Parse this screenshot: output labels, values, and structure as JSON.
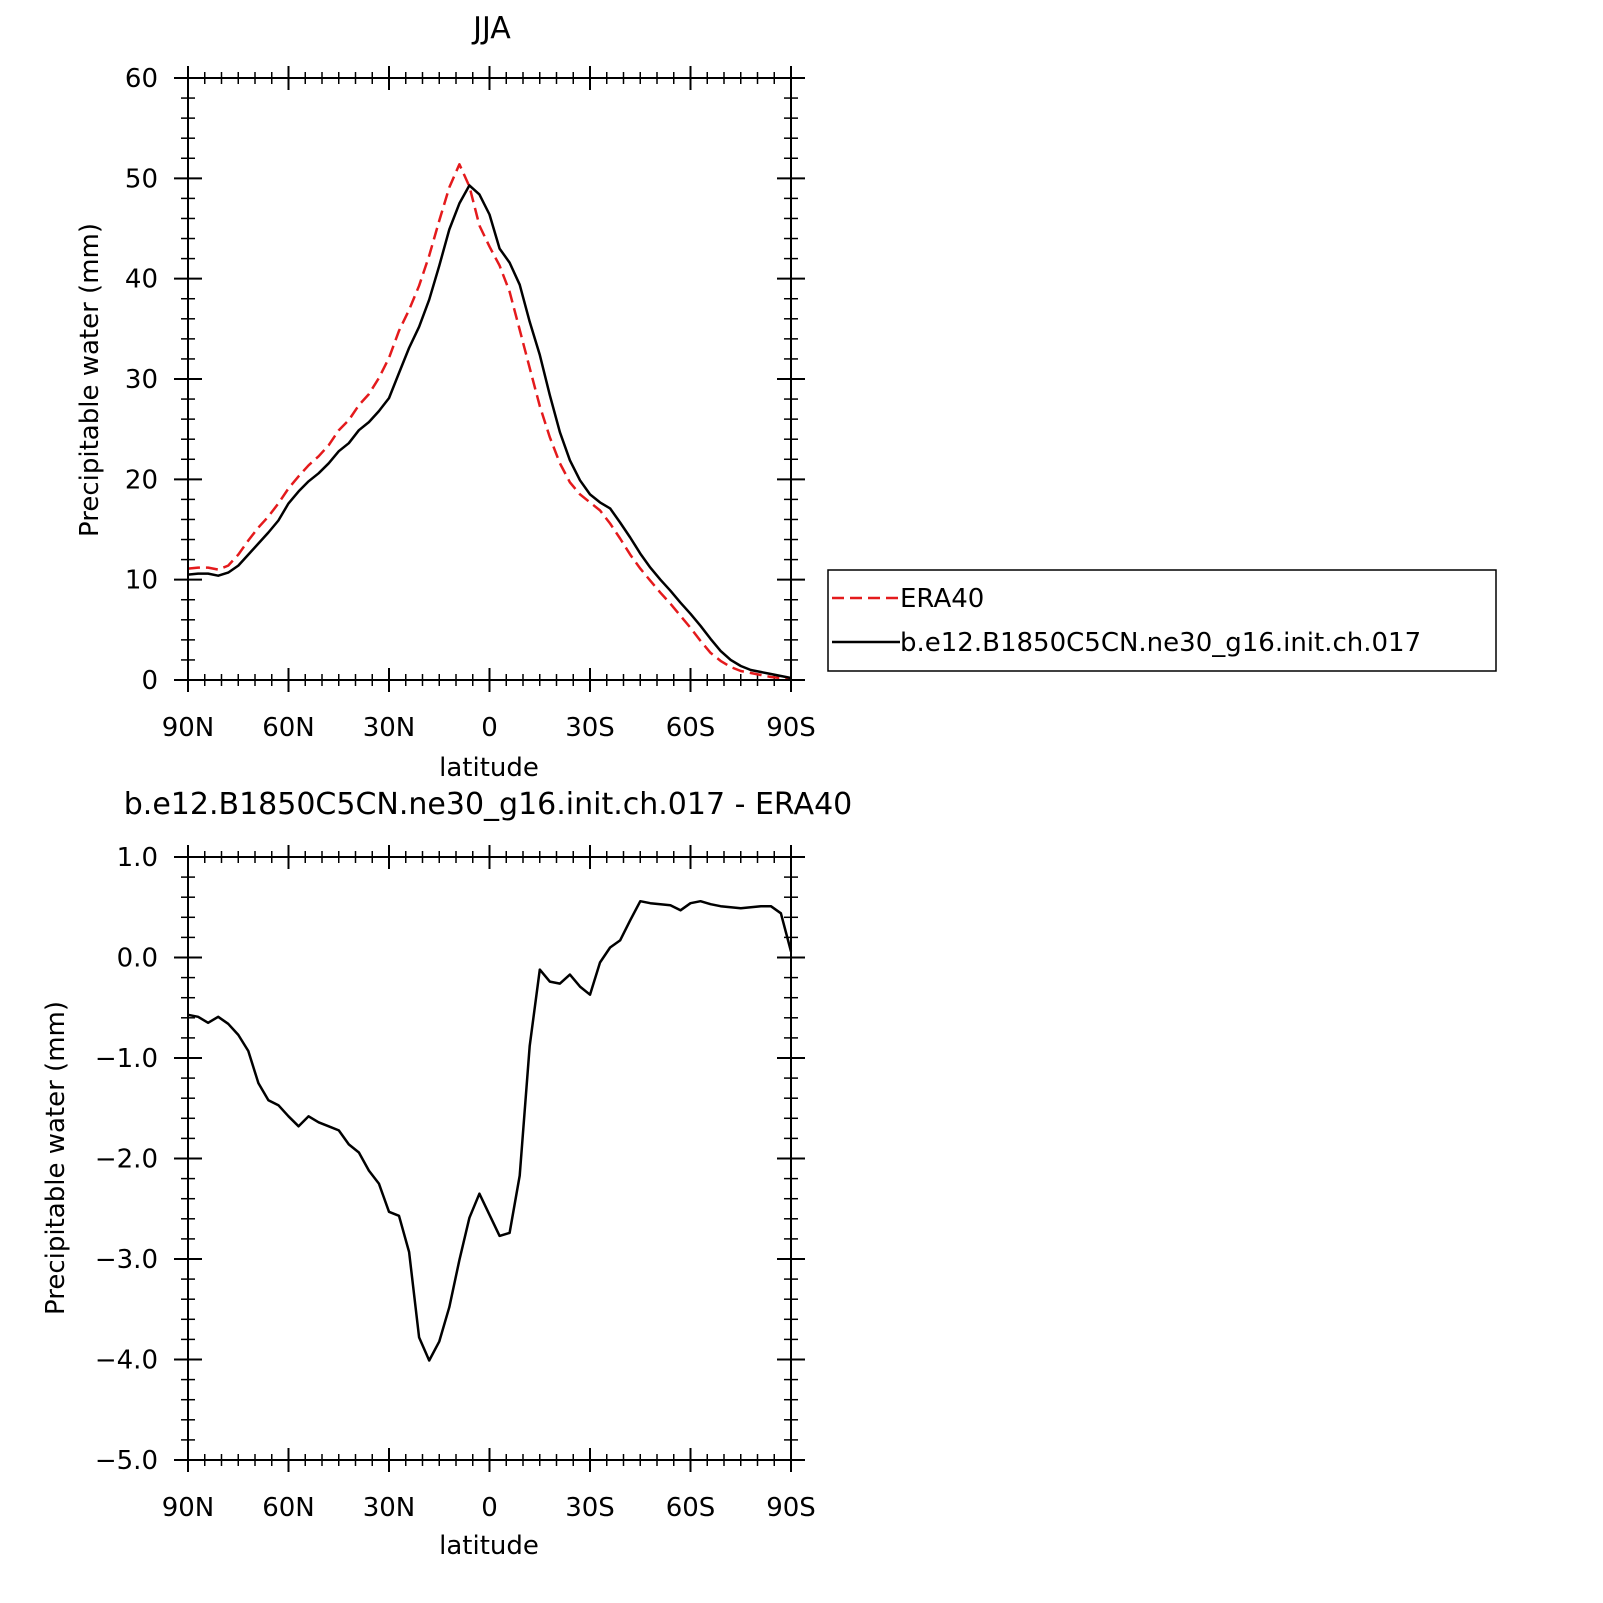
{
  "colors": {
    "era40": "#e41a1c",
    "model": "#000000",
    "axis": "#000000",
    "background": "#ffffff"
  },
  "legend": {
    "placement": "right",
    "items": [
      {
        "label": "ERA40",
        "color": "#e41a1c",
        "dash": "dashed"
      },
      {
        "label": "b.e12.B1850C5CN.ne30_g16.init.ch.017",
        "color": "#000000",
        "dash": "solid"
      }
    ]
  },
  "chart_data": [
    {
      "type": "line",
      "title": "JJA",
      "xlabel": "latitude",
      "ylabel": "Precipitable water (mm)",
      "xlim": [
        90,
        -90
      ],
      "ylim": [
        0,
        60
      ],
      "x_ticks": [
        90,
        60,
        30,
        0,
        -30,
        -60,
        -90
      ],
      "x_tick_labels": [
        "90N",
        "60N",
        "30N",
        "0",
        "30S",
        "60S",
        "90S"
      ],
      "y_ticks": [
        0,
        10,
        20,
        30,
        40,
        50,
        60
      ],
      "y_tick_labels": [
        "0",
        "10",
        "20",
        "30",
        "40",
        "50",
        "60"
      ],
      "grid": false,
      "legend": "right",
      "series": [
        {
          "name": "ERA40",
          "color": "#e41a1c",
          "dash": "dashed",
          "x": [
            90,
            87,
            84,
            81,
            78,
            75,
            72,
            69,
            66,
            63,
            60,
            57,
            54,
            51,
            48,
            45,
            42,
            39,
            36,
            33,
            30,
            27,
            24,
            21,
            18,
            15,
            12,
            9,
            6,
            3,
            0,
            -3,
            -6,
            -9,
            -12,
            -15,
            -18,
            -21,
            -24,
            -27,
            -30,
            -33,
            -36,
            -39,
            -42,
            -45,
            -48,
            -51,
            -54,
            -57,
            -60,
            -63,
            -66,
            -69,
            -72,
            -75,
            -78,
            -81,
            -84,
            -87,
            -90
          ],
          "values": [
            11.1,
            11.2,
            11.2,
            11.0,
            11.4,
            12.5,
            13.9,
            15.2,
            16.3,
            17.6,
            19.1,
            20.3,
            21.4,
            22.3,
            23.4,
            24.9,
            25.9,
            27.4,
            28.5,
            30.1,
            32.1,
            34.8,
            36.9,
            39.3,
            42.3,
            45.8,
            49.1,
            51.4,
            49.2,
            45.3,
            43.2,
            41.3,
            38.7,
            34.9,
            31.1,
            27.3,
            24.2,
            21.6,
            19.7,
            18.5,
            17.7,
            16.9,
            15.6,
            14.1,
            12.5,
            11.1,
            9.9,
            8.7,
            7.6,
            6.4,
            5.2,
            3.9,
            2.7,
            1.9,
            1.3,
            0.9,
            0.7,
            0.5,
            0.3,
            0.2,
            0.1
          ]
        },
        {
          "name": "b.e12.B1850C5CN.ne30_g16.init.ch.017",
          "color": "#000000",
          "dash": "solid",
          "x": [
            90,
            87,
            84,
            81,
            78,
            75,
            72,
            69,
            66,
            63,
            60,
            57,
            54,
            51,
            48,
            45,
            42,
            39,
            36,
            33,
            30,
            27,
            24,
            21,
            18,
            15,
            12,
            9,
            6,
            3,
            0,
            -3,
            -6,
            -9,
            -12,
            -15,
            -18,
            -21,
            -24,
            -27,
            -30,
            -33,
            -36,
            -39,
            -42,
            -45,
            -48,
            -51,
            -54,
            -57,
            -60,
            -63,
            -66,
            -69,
            -72,
            -75,
            -78,
            -81,
            -84,
            -87,
            -90
          ],
          "values": [
            10.5,
            10.6,
            10.6,
            10.4,
            10.7,
            11.4,
            12.5,
            13.6,
            14.7,
            15.9,
            17.6,
            18.8,
            19.8,
            20.6,
            21.6,
            22.8,
            23.6,
            24.9,
            25.7,
            26.8,
            28.1,
            30.6,
            33.1,
            35.2,
            37.9,
            41.3,
            44.9,
            47.5,
            49.3,
            48.4,
            46.4,
            43.0,
            41.6,
            39.4,
            35.7,
            32.4,
            28.4,
            24.7,
            21.9,
            19.9,
            18.5,
            17.7,
            17.1,
            15.7,
            14.2,
            12.6,
            11.2,
            10.0,
            8.9,
            7.7,
            6.6,
            5.4,
            4.1,
            2.9,
            2.0,
            1.4,
            1.0,
            0.8,
            0.6,
            0.4,
            0.2
          ]
        }
      ]
    },
    {
      "type": "line",
      "title": "b.e12.B1850C5CN.ne30_g16.init.ch.017 - ERA40",
      "xlabel": "latitude",
      "ylabel": "Precipitable water (mm)",
      "xlim": [
        90,
        -90
      ],
      "ylim": [
        -5.0,
        1.0
      ],
      "x_ticks": [
        90,
        60,
        30,
        0,
        -30,
        -60,
        -90
      ],
      "x_tick_labels": [
        "90N",
        "60N",
        "30N",
        "0",
        "30S",
        "60S",
        "90S"
      ],
      "y_ticks": [
        1.0,
        0.0,
        -1.0,
        -2.0,
        -3.0,
        -4.0,
        -5.0
      ],
      "y_tick_labels": [
        "1.0",
        "0.0",
        "−1.0",
        "−2.0",
        "−3.0",
        "−4.0",
        "−5.0"
      ],
      "grid": false,
      "series": [
        {
          "color": "#000000",
          "dash": "solid",
          "x": [
            90,
            87,
            84,
            81,
            78,
            75,
            72,
            69,
            66,
            63,
            60,
            57,
            54,
            51,
            48,
            45,
            42,
            39,
            36,
            33,
            30,
            27,
            24,
            21,
            18,
            15,
            12,
            9,
            6,
            3,
            0,
            -3,
            -6,
            -9,
            -12,
            -15,
            -18,
            -21,
            -24,
            -27,
            -30,
            -33,
            -36,
            -39,
            -42,
            -45,
            -48,
            -51,
            -54,
            -57,
            -60,
            -63,
            -66,
            -69,
            -72,
            -75,
            -78,
            -81,
            -84,
            -87,
            -90
          ],
          "values": [
            -0.57,
            -0.59,
            -0.65,
            -0.59,
            -0.66,
            -0.77,
            -0.93,
            -1.25,
            -1.42,
            -1.47,
            -1.58,
            -1.68,
            -1.58,
            -1.64,
            -1.68,
            -1.72,
            -1.86,
            -1.94,
            -2.12,
            -2.25,
            -2.53,
            -2.57,
            -2.93,
            -3.78,
            -4.01,
            -3.82,
            -3.48,
            -3.01,
            -2.59,
            -2.35,
            -2.56,
            -2.77,
            -2.74,
            -2.17,
            -0.88,
            -0.12,
            -0.24,
            -0.26,
            -0.17,
            -0.29,
            -0.37,
            -0.05,
            0.1,
            0.17,
            0.37,
            0.56,
            0.54,
            0.53,
            0.52,
            0.47,
            0.54,
            0.56,
            0.53,
            0.51,
            0.5,
            0.49,
            0.5,
            0.51,
            0.51,
            0.44,
            0.06
          ]
        }
      ]
    }
  ]
}
